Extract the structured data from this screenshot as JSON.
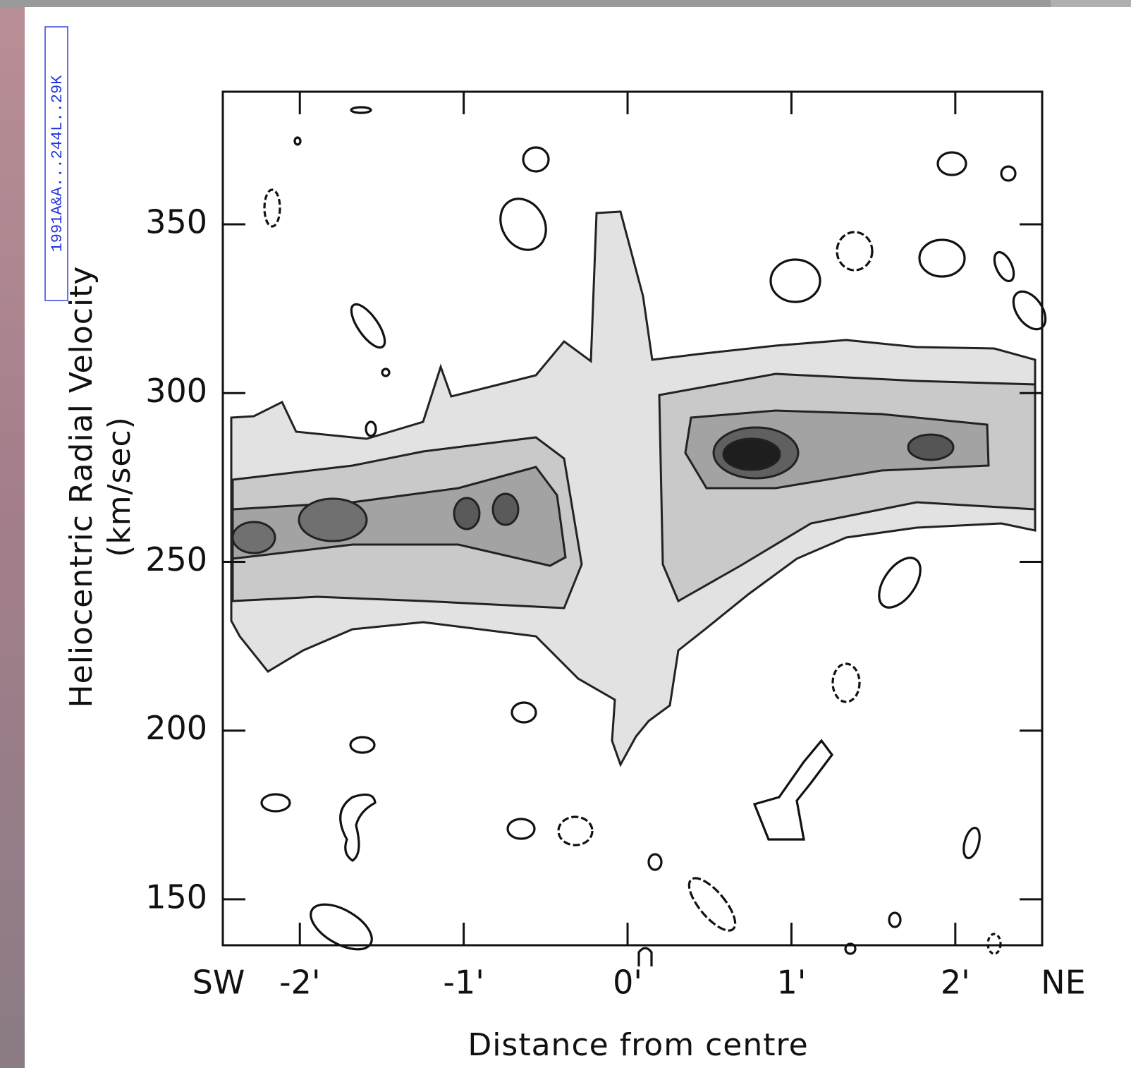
{
  "chart_data": {
    "type": "contour",
    "stamp": "1991A&A...244L..29K",
    "y_label": "Heliocentric Radial Velocity",
    "y_unit": "(km/sec)",
    "x_label": "Distance from centre",
    "x_left_label": "SW",
    "x_right_label": "NE",
    "xlim": [
      -2.47,
      2.53
    ],
    "ylim": [
      136.4,
      389.3
    ],
    "xticks": [
      {
        "value": -2,
        "label": "-2'"
      },
      {
        "value": -1,
        "label": "-1'"
      },
      {
        "value": 0,
        "label": "0'"
      },
      {
        "value": 1,
        "label": "1'"
      },
      {
        "value": 2,
        "label": "2'"
      }
    ],
    "yticks": [
      150,
      200,
      250,
      300,
      350
    ]
  }
}
